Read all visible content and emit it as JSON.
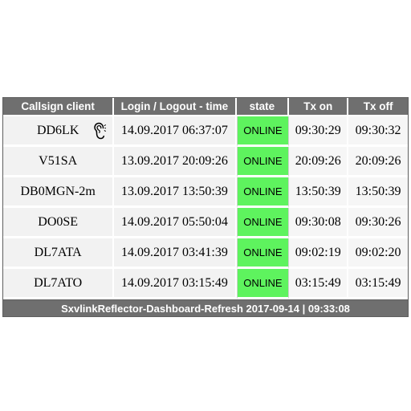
{
  "table": {
    "headers": {
      "callsign": "Callsign client",
      "login": "Login / Logout - time",
      "state": "state",
      "tx_on": "Tx on",
      "tx_off": "Tx off"
    },
    "rows": [
      {
        "callsign": "DD6LK",
        "login": "14.09.2017 06:37:07",
        "state": "ONLINE",
        "tx_on": "09:30:29",
        "tx_off": "09:30:32",
        "icon": "ear-icon"
      },
      {
        "callsign": "V51SA",
        "login": "13.09.2017 20:09:26",
        "state": "ONLINE",
        "tx_on": "20:09:26",
        "tx_off": "20:09:26"
      },
      {
        "callsign": "DB0MGN-2m",
        "login": "13.09.2017 13:50:39",
        "state": "ONLINE",
        "tx_on": "13:50:39",
        "tx_off": "13:50:39"
      },
      {
        "callsign": "DO0SE",
        "login": "14.09.2017 05:50:04",
        "state": "ONLINE",
        "tx_on": "09:30:08",
        "tx_off": "09:30:26"
      },
      {
        "callsign": "DL7ATA",
        "login": "14.09.2017 03:41:39",
        "state": "ONLINE",
        "tx_on": "09:02:19",
        "tx_off": "09:02:20"
      },
      {
        "callsign": "DL7ATO",
        "login": "14.09.2017 03:15:49",
        "state": "ONLINE",
        "tx_on": "03:15:49",
        "tx_off": "03:15:49"
      }
    ],
    "footer": "SxvlinkReflector-Dashboard-Refresh 2017-09-14 | 09:33:08"
  },
  "colors": {
    "header_bg": "#6f6f6f",
    "online_bg": "#5ef35e",
    "row_bg": "#f2f2f2"
  }
}
